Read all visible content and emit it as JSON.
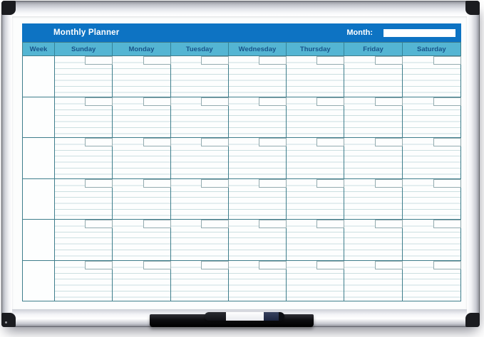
{
  "board": {
    "title": "Monthly Planner",
    "month_label": "Month:",
    "month_value": "",
    "week_header": "Week",
    "days": [
      "Sunday",
      "Monday",
      "Tuesday",
      "Wednesday",
      "Thursday",
      "Friday",
      "Saturday"
    ],
    "weeks": 6,
    "lines_per_cell": 6
  },
  "colors": {
    "header_bar": "#0d73c3",
    "day_header_bg": "#54b5d3",
    "day_header_text": "#17538b",
    "grid_line": "#3f7e8c",
    "ruled_line": "#ccdfe1",
    "frame_silver": "#dfe1e7",
    "corner_cap": "#1b1c20",
    "tray_black": "#0a0a0c",
    "marker_cap_navy": "#27304f"
  },
  "accessories": {
    "tray": "marker-tray",
    "marker": "dry-erase-marker"
  }
}
